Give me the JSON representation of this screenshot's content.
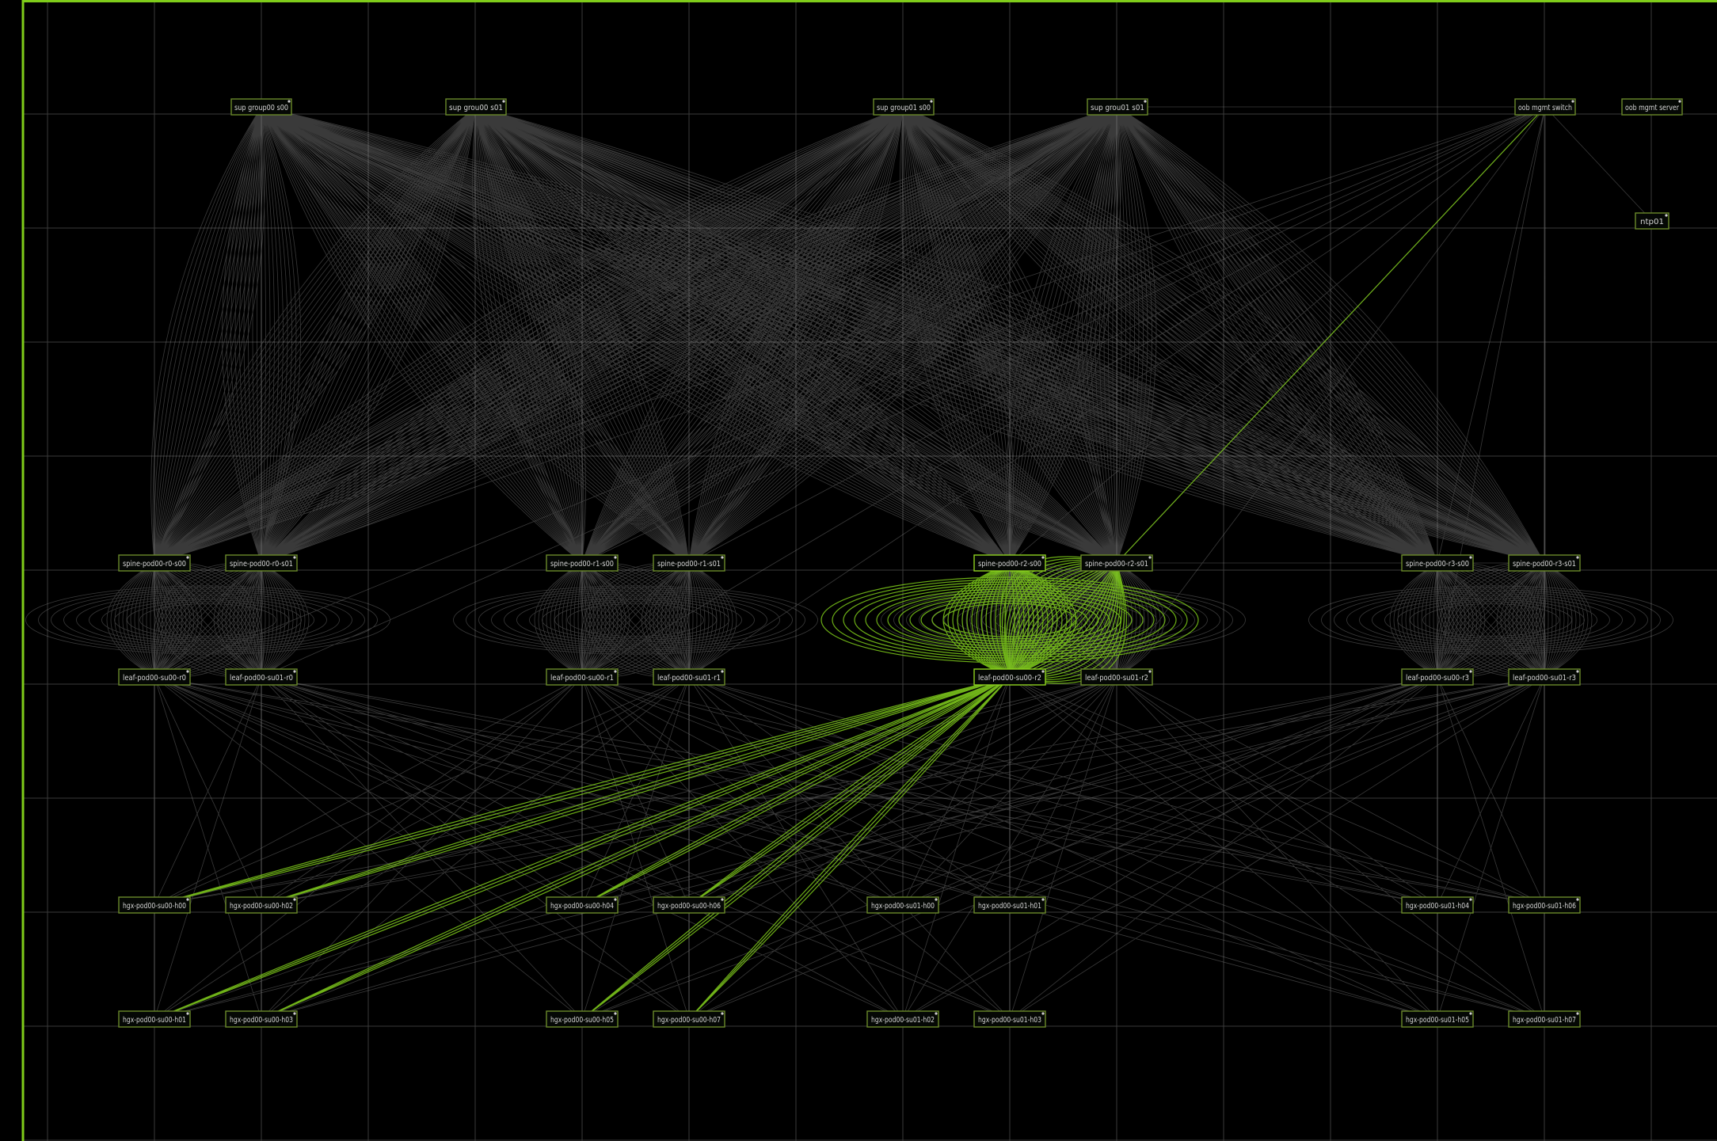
{
  "colors": {
    "background": "#000000",
    "grid": "#3a3a3a",
    "link": "#cfcfcf",
    "highlight": "#7fcc1a",
    "border": "#7fcc1a",
    "node_border": "#6a8a2a"
  },
  "nodes": {
    "sg0": "sup group00 s00",
    "sg1": "sup grou00 s01",
    "sg2": "sup group01 s00",
    "sg3": "sup grou01 s01",
    "mgmt": "oob mgmt switch",
    "oobsw": "oob mgmt server",
    "ntp": "ntp01",
    "sp00": "spine-pod00-r0-s00",
    "sp01": "spine-pod00-r0-s01",
    "sp10": "spine-pod00-r1-s00",
    "sp11": "spine-pod00-r1-s01",
    "sp20": "spine-pod00-r2-s00",
    "sp21": "spine-pod00-r2-s01",
    "sp30": "spine-pod00-r3-s00",
    "sp31": "spine-pod00-r3-s01",
    "lf00": "leaf-pod00-su00-r0",
    "lf01": "leaf-pod00-su01-r0",
    "lf10": "leaf-pod00-su00-r1",
    "lf11": "leaf-pod00-su01-r1",
    "lf20": "leaf-pod00-su00-r2",
    "lf21": "leaf-pod00-su01-r2",
    "lf30": "leaf-pod00-su00-r3",
    "lf31": "leaf-pod00-su01-r3",
    "h00": "hgx-pod00-su00-h00",
    "h02": "hgx-pod00-su00-h02",
    "h01": "hgx-pod00-su00-h01",
    "h03": "hgx-pod00-su00-h03",
    "h04": "hgx-pod00-su00-h04",
    "h05": "hgx-pod00-su00-h05",
    "h06": "hgx-pod00-su00-h06",
    "h07": "hgx-pod00-su00-h07",
    "h10": "hgx-pod00-su01-h00",
    "h11": "hgx-pod00-su01-h01",
    "h12": "hgx-pod00-su01-h02",
    "h13": "hgx-pod00-su01-h03",
    "h14": "hgx-pod00-su01-h04",
    "h15": "hgx-pod00-su01-h05",
    "h16": "hgx-pod00-su01-h06",
    "h17": "hgx-pod00-su01-h07"
  }
}
